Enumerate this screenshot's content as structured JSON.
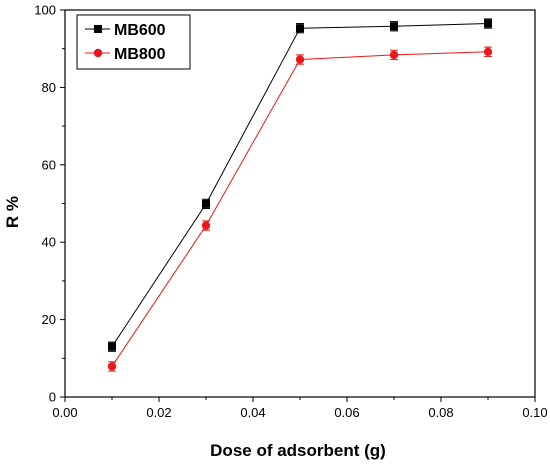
{
  "chart_data": {
    "type": "line",
    "title": "",
    "xlabel": "Dose of adsorbent (g)",
    "ylabel": "R %",
    "xlim": [
      0.0,
      0.1
    ],
    "ylim": [
      0,
      100
    ],
    "xticks": [
      "0.00",
      "0.02",
      "0.04",
      "0.06",
      "0.08",
      "0.10"
    ],
    "xtick_values": [
      0.0,
      0.02,
      0.04,
      0.06,
      0.08,
      0.1
    ],
    "yticks": [
      "0",
      "20",
      "40",
      "60",
      "80",
      "100"
    ],
    "ytick_values": [
      0,
      20,
      40,
      60,
      80,
      100
    ],
    "grid": false,
    "legend_position": "top-left",
    "x": [
      0.01,
      0.03,
      0.05,
      0.07,
      0.09
    ],
    "series": [
      {
        "name": "MB600",
        "values": [
          13.0,
          49.9,
          95.3,
          95.8,
          96.5
        ],
        "errors": [
          1.2,
          1.2,
          1.2,
          1.2,
          1.2
        ],
        "color": "#000000",
        "marker": "square"
      },
      {
        "name": "MB800",
        "values": [
          7.9,
          44.3,
          87.2,
          88.4,
          89.2
        ],
        "errors": [
          1.2,
          1.2,
          1.2,
          1.2,
          1.2
        ],
        "color": "#e8191b",
        "marker": "circle"
      }
    ]
  }
}
